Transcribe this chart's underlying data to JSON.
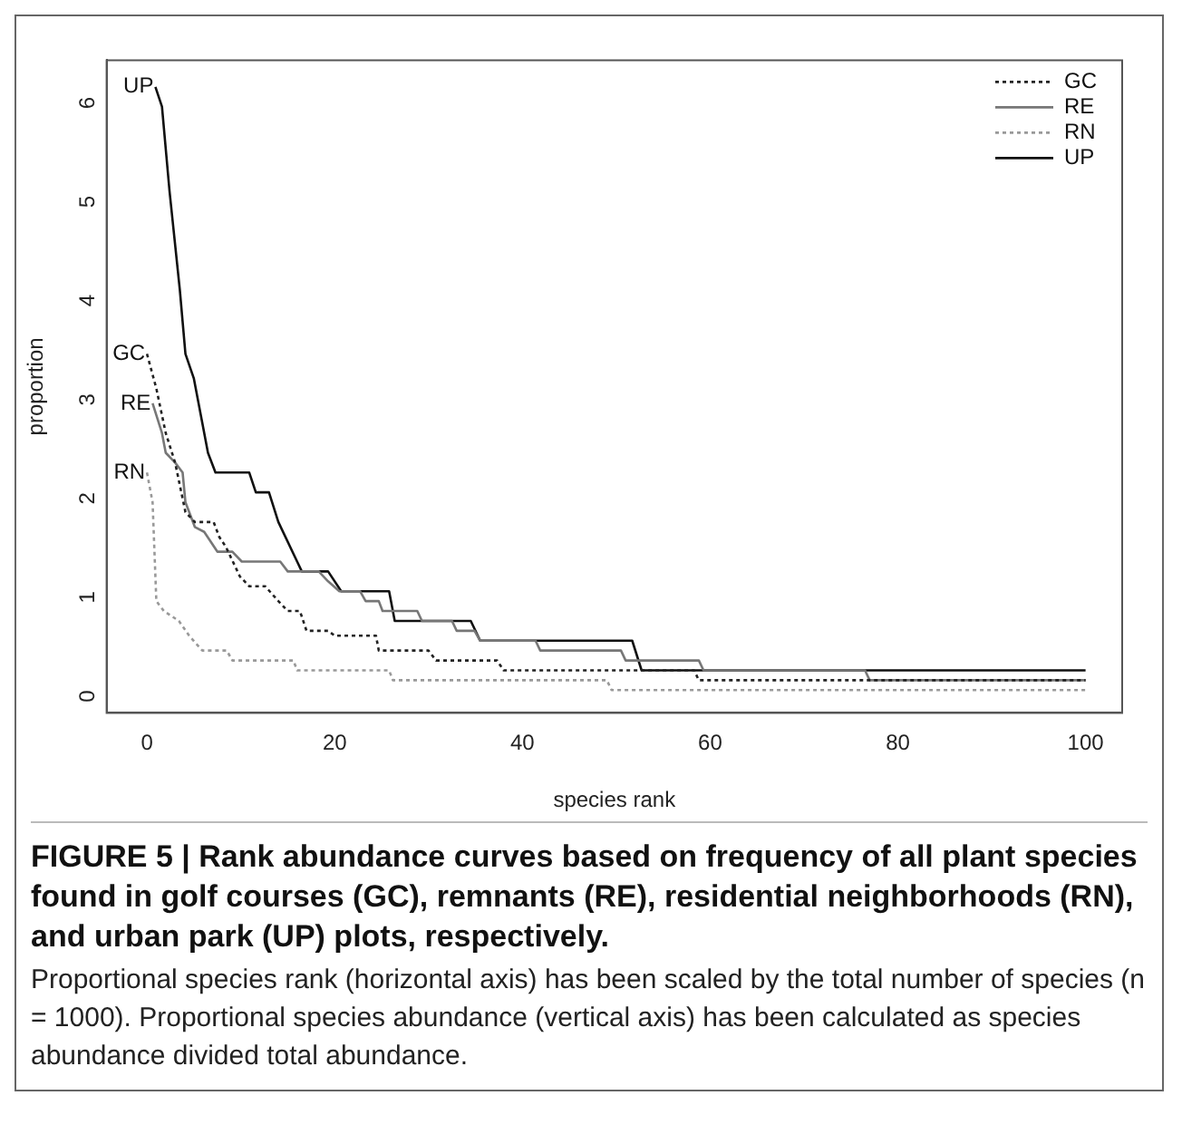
{
  "chart_data": {
    "type": "line",
    "title": "FIGURE 5 | Rank abundance curves based on frequency of all plant species found in golf courses (GC), remnants (RE), residential neighborhoods (RN), and urban park (UP) plots, respectively.",
    "xlabel": "species rank",
    "ylabel": "proportion",
    "xlim": [
      -4.3,
      103.9
    ],
    "ylim": [
      -0.23,
      6.37
    ],
    "xticks": [
      0,
      20,
      40,
      60,
      80,
      100
    ],
    "yticks": [
      0,
      1,
      2,
      3,
      4,
      5,
      6
    ],
    "grid": false,
    "legend": "top right",
    "marker": "none",
    "series": [
      {
        "name": "GC",
        "color": "#222222",
        "line_style": "dotted",
        "x": [
          0,
          1,
          2,
          3,
          4.1,
          5.1,
          7.1,
          7.7,
          8.4,
          9.9,
          10.9,
          12.6,
          14,
          15,
          16.3,
          17,
          19.3,
          20,
          24.4,
          24.7,
          30,
          30.8,
          37.3,
          38,
          58.3,
          58.8,
          100
        ],
        "values": [
          3.4,
          3.05,
          2.6,
          2.3,
          1.8,
          1.7,
          1.7,
          1.55,
          1.45,
          1.15,
          1.05,
          1.05,
          0.9,
          0.8,
          0.8,
          0.6,
          0.6,
          0.55,
          0.55,
          0.4,
          0.4,
          0.3,
          0.3,
          0.2,
          0.2,
          0.1,
          0.1
        ]
      },
      {
        "name": "RE",
        "color": "#777777",
        "line_style": "solid",
        "x": [
          0.6,
          1.6,
          2,
          3,
          3.8,
          4.1,
          5.1,
          6.1,
          7.5,
          9.1,
          10.1,
          14.2,
          15,
          18.3,
          19.3,
          20.5,
          22.7,
          23.3,
          24.7,
          25.1,
          28.8,
          29.3,
          32.5,
          33,
          34.9,
          35.5,
          41.4,
          41.9,
          50.5,
          51,
          58.8,
          59.3,
          76.5,
          77,
          100
        ],
        "values": [
          2.9,
          2.6,
          2.4,
          2.3,
          2.2,
          1.9,
          1.65,
          1.6,
          1.4,
          1.4,
          1.3,
          1.3,
          1.2,
          1.2,
          1.1,
          1.0,
          1.0,
          0.9,
          0.9,
          0.8,
          0.8,
          0.7,
          0.7,
          0.6,
          0.6,
          0.5,
          0.5,
          0.4,
          0.4,
          0.3,
          0.3,
          0.2,
          0.2,
          0.1,
          0.1
        ]
      },
      {
        "name": "RN",
        "color": "#999999",
        "line_style": "dotted",
        "x": [
          0,
          0.6,
          0.8,
          1,
          1.8,
          3.4,
          4.5,
          5.9,
          8.5,
          9.1,
          15.6,
          16,
          25.8,
          26.2,
          49,
          49.5,
          100
        ],
        "values": [
          2.2,
          1.9,
          1.4,
          0.9,
          0.8,
          0.7,
          0.55,
          0.4,
          0.4,
          0.3,
          0.3,
          0.2,
          0.2,
          0.1,
          0.1,
          0,
          0
        ]
      },
      {
        "name": "UP",
        "color": "#111111",
        "line_style": "solid",
        "x": [
          0.9,
          1.6,
          2.4,
          3.5,
          4.1,
          5,
          5.9,
          6.5,
          7.3,
          10.9,
          11.6,
          13,
          14,
          16,
          16.5,
          19.3,
          20.7,
          25.8,
          26.4,
          34.5,
          35.5,
          51.7,
          52.7,
          100
        ],
        "values": [
          6.1,
          5.9,
          5.05,
          4.05,
          3.4,
          3.15,
          2.7,
          2.4,
          2.2,
          2.2,
          2.0,
          2.0,
          1.7,
          1.3,
          1.2,
          1.2,
          1.0,
          1.0,
          0.7,
          0.7,
          0.5,
          0.5,
          0.2,
          0.2
        ]
      }
    ],
    "annotations": [
      {
        "text": "UP",
        "x": 0.9,
        "y": 6.1
      },
      {
        "text": "GC",
        "x": 0,
        "y": 3.4
      },
      {
        "text": "RE",
        "x": 0.6,
        "y": 2.9
      },
      {
        "text": "RN",
        "x": 0,
        "y": 2.2
      },
      "Proportional species rank (horizontal axis) has been scaled by the total number of species (n = 1000). Proportional species abundance (vertical axis) has been calculated as species abundance divided total abundance."
    ]
  }
}
